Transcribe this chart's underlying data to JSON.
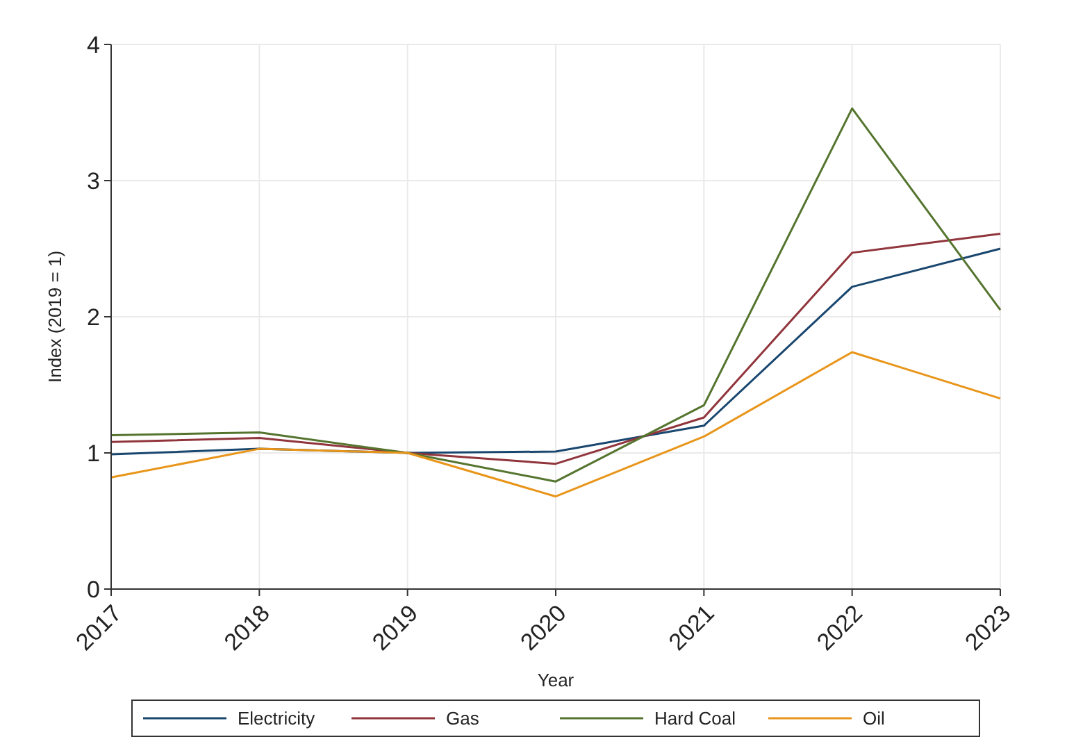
{
  "chart_data": {
    "type": "line",
    "xlabel": "Year",
    "ylabel": "Index (2019 = 1)",
    "x": [
      2017,
      2018,
      2019,
      2020,
      2021,
      2022,
      2023
    ],
    "xlim": [
      2017,
      2023
    ],
    "xticks": [
      2017,
      2018,
      2019,
      2020,
      2021,
      2022,
      2023
    ],
    "ylim": [
      0,
      4
    ],
    "yticks": [
      0,
      1,
      2,
      3,
      4
    ],
    "grid": true,
    "legend": "bottom",
    "line_style": "solid",
    "series": [
      {
        "name": "Electricity",
        "color": "#1a476f",
        "values": [
          0.99,
          1.03,
          1.0,
          1.01,
          1.2,
          2.22,
          2.5
        ]
      },
      {
        "name": "Gas",
        "color": "#90353b",
        "values": [
          1.08,
          1.11,
          1.0,
          0.92,
          1.26,
          2.47,
          2.61
        ]
      },
      {
        "name": "Hard Coal",
        "color": "#55752f",
        "values": [
          1.13,
          1.15,
          1.0,
          0.79,
          1.35,
          3.53,
          2.05
        ]
      },
      {
        "name": "Oil",
        "color": "#e8951a",
        "values": [
          0.82,
          1.03,
          1.0,
          0.68,
          1.12,
          1.74,
          1.4
        ]
      }
    ]
  }
}
